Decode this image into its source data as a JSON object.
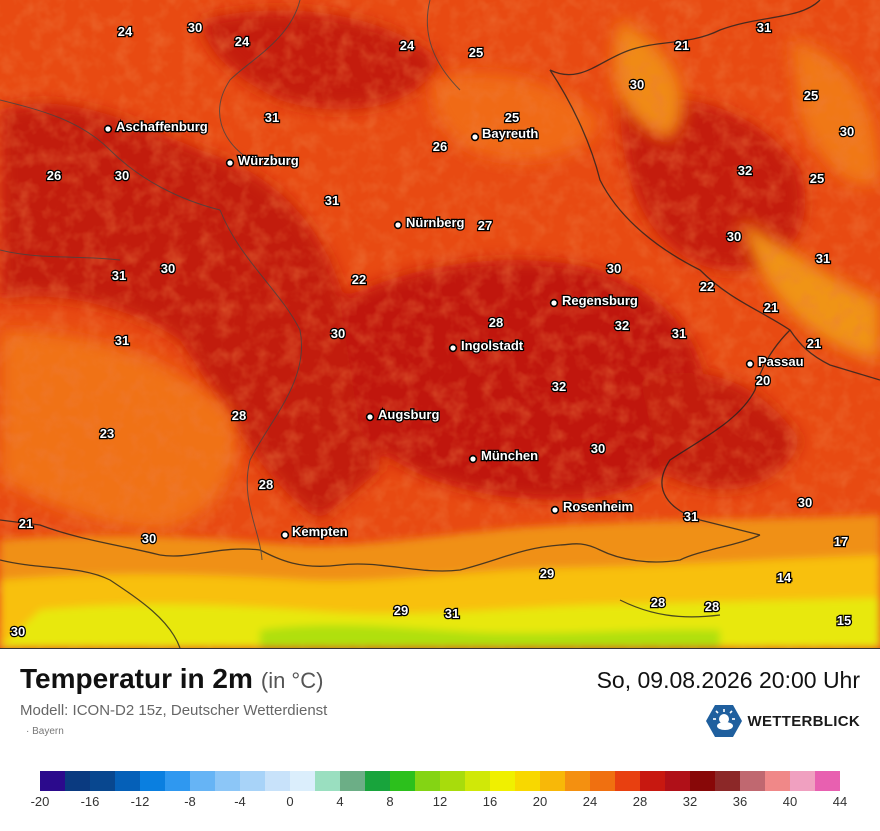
{
  "map": {
    "cities": [
      {
        "name": "Aschaffenburg"
      },
      {
        "name": "Würzburg"
      },
      {
        "name": "Bayreuth"
      },
      {
        "name": "Nürnberg"
      },
      {
        "name": "Regensburg"
      },
      {
        "name": "Ingolstadt"
      },
      {
        "name": "Passau"
      },
      {
        "name": "Augsburg"
      },
      {
        "name": "München"
      },
      {
        "name": "Rosenheim"
      },
      {
        "name": "Kempten"
      }
    ],
    "temperatures": [
      "24",
      "30",
      "24",
      "24",
      "25",
      "21",
      "31",
      "30",
      "25",
      "30",
      "31",
      "25",
      "26",
      "32",
      "26",
      "30",
      "25",
      "31",
      "27",
      "30",
      "30",
      "22",
      "31",
      "30",
      "22",
      "21",
      "31",
      "30",
      "28",
      "32",
      "21",
      "31",
      "31",
      "20",
      "32",
      "28",
      "23",
      "30",
      "28",
      "31",
      "30",
      "21",
      "30",
      "17",
      "29",
      "14",
      "29",
      "31",
      "28",
      "28",
      "15",
      "30"
    ]
  },
  "footer": {
    "title": "Temperatur in 2m",
    "unit": "(in °C)",
    "datetime": "So, 09.08.2026 20:00 Uhr",
    "model": "Modell: ICON-D2 15z, Deutscher Wetterdienst",
    "region": "Bayern",
    "logo_text": "WETTERBLICK"
  },
  "color_scale": {
    "colors": [
      "#2b0a8c",
      "#0a3a80",
      "#08478f",
      "#0560b8",
      "#0a7fe0",
      "#2f98f0",
      "#66b4f5",
      "#8cc6f7",
      "#a8d3f8",
      "#c8e2fa",
      "#dbeefc",
      "#9adfc0",
      "#6cae86",
      "#18a43c",
      "#2cc01c",
      "#84d414",
      "#a8dc0c",
      "#d0e808",
      "#f0f000",
      "#f8d800",
      "#f8b808",
      "#f49010",
      "#f07010",
      "#e84010",
      "#c81810",
      "#b01018",
      "#880808",
      "#8c2828",
      "#c06870",
      "#f08888",
      "#f0a0c0",
      "#e860b0"
    ],
    "ticks": [
      "-20",
      "-16",
      "-12",
      "-8",
      "-4",
      "0",
      "4",
      "8",
      "12",
      "16",
      "20",
      "24",
      "28",
      "32",
      "36",
      "40",
      "44"
    ]
  }
}
